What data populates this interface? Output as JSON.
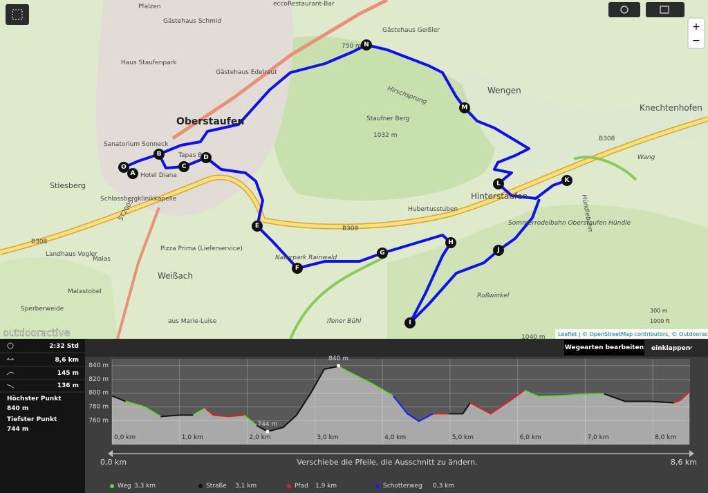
{
  "map": {
    "labels": [
      "Pfalzen",
      "eccoRestaurant-Bar",
      "Gästehaus Schmid",
      "Haus Staufenpark",
      "Gästehaus Edelraut",
      "Oberstaufen",
      "Sanatorium Sonneck",
      "Tapas Bar",
      "Hotel Diana",
      "Stiesberg",
      "Schlossbergklinikkapelle",
      "Landhaus Vogler",
      "Malas",
      "Pizza Prima (Lieferservice)",
      "Weißach",
      "Malastobel",
      "aus Marie-Luise",
      "Sperberweide",
      "Naturpark Rainwald",
      "Ifener Bühl",
      "Roßwinkel",
      "Hinterstaufen",
      "Hubertusstuben",
      "Staufner Berg",
      "1032 m",
      "Hirschsprung",
      "Wengen",
      "Knechtenhofen",
      "Wang",
      "Sommerrodelbahn Oberstaufen Hündle",
      "750 m",
      "Gästehaus Geißler",
      "B308",
      "B308",
      "B308",
      "ST2005",
      "1040 m",
      "Hündlebahn"
    ],
    "waypoints": [
      "A",
      "B",
      "C",
      "D",
      "E",
      "F",
      "G",
      "H",
      "I",
      "J",
      "K",
      "L",
      "M",
      "N",
      "O"
    ],
    "brand": "outdooractive",
    "attribution": "Leaflet | © OpenStreetMap contributors, © Outdooractive",
    "scale_metric": "300 m",
    "scale_imperial": "1000 ft",
    "zoom_in": "+",
    "zoom_out": "−"
  },
  "stats": {
    "duration": "2:32 Std",
    "distance": "8,6 km",
    "ascent": "145 m",
    "descent": "136 m",
    "highest_label": "Höchster Punkt",
    "highest": "840 m",
    "lowest_label": "Tiefster Punkt",
    "lowest": "744 m"
  },
  "toolbar": {
    "edit": "Wegearten bearbeiten",
    "collapse": "einklappen"
  },
  "slider": {
    "start_label": "0,0 km",
    "end_label": "8,6 km",
    "hint": "Verschiebe die Pfeile, die Ausschnitt zu ändern."
  },
  "chart_data": {
    "type": "line",
    "x": [
      0,
      0.2,
      0.48,
      0.72,
      1.0,
      1.2,
      1.38,
      1.5,
      1.72,
      1.95,
      2.14,
      2.3,
      2.53,
      2.73,
      2.94,
      3.14,
      3.35,
      3.52,
      3.86,
      4.16,
      4.37,
      4.54,
      4.75,
      4.98,
      5.19,
      5.3,
      5.6,
      5.9,
      6.1,
      6.31,
      6.62,
      6.93,
      7.28,
      7.59,
      7.95,
      8.31,
      8.41,
      8.54
    ],
    "series": [
      {
        "name": "Weg",
        "distance": "3,3 km",
        "color": "#6ad23a",
        "values": [
          null,
          788,
          780,
          766,
          null,
          768,
          778,
          null,
          null,
          768,
          753,
          null,
          null,
          null,
          null,
          null,
          839,
          830,
          813,
          796,
          null,
          null,
          null,
          null,
          null,
          null,
          null,
          null,
          804,
          795,
          796,
          798,
          799,
          null,
          null,
          null,
          null,
          null
        ]
      },
      {
        "name": "Straße",
        "distance": "3,1 km",
        "color": "#111111",
        "values": [
          796,
          788,
          null,
          766,
          768,
          768,
          null,
          null,
          null,
          null,
          753,
          744,
          750,
          768,
          800,
          835,
          839,
          null,
          null,
          null,
          null,
          null,
          null,
          770,
          770,
          786,
          null,
          null,
          null,
          null,
          null,
          null,
          799,
          788,
          788,
          786,
          null,
          null
        ]
      },
      {
        "name": "Pfad",
        "distance": "1,9 km",
        "color": "#e02020",
        "values": [
          null,
          null,
          null,
          null,
          null,
          null,
          778,
          768,
          766,
          768,
          null,
          null,
          null,
          null,
          null,
          null,
          null,
          null,
          null,
          null,
          null,
          null,
          770,
          770,
          null,
          786,
          770,
          790,
          804,
          null,
          null,
          null,
          null,
          null,
          null,
          786,
          790,
          802
        ]
      },
      {
        "name": "Schotterweg",
        "distance": "0,3 km",
        "color": "#1a1aff",
        "values": [
          null,
          null,
          null,
          null,
          null,
          null,
          null,
          null,
          null,
          null,
          null,
          null,
          null,
          null,
          null,
          null,
          null,
          null,
          null,
          796,
          770,
          759,
          770,
          null,
          null,
          null,
          null,
          null,
          null,
          null,
          null,
          null,
          null,
          null,
          null,
          null,
          null,
          null
        ]
      }
    ],
    "annotations": [
      {
        "x": 3.35,
        "value": 840,
        "label": "840 m"
      },
      {
        "x": 2.3,
        "value": 744,
        "label": "744 m"
      }
    ],
    "xlim": [
      0,
      8.55
    ],
    "ylim": [
      725,
      850
    ],
    "xticks": [
      {
        "value": 0,
        "label": "0,0 km"
      },
      {
        "value": 1,
        "label": "1,0 km"
      },
      {
        "value": 2,
        "label": "2,0 km"
      },
      {
        "value": 3,
        "label": "3,0 km"
      },
      {
        "value": 4,
        "label": "4,0 km"
      },
      {
        "value": 5,
        "label": "5,0 km"
      },
      {
        "value": 6,
        "label": "6,0 km"
      },
      {
        "value": 7,
        "label": "7,0 km"
      },
      {
        "value": 8,
        "label": "8,0 km"
      }
    ],
    "yticks": [
      {
        "value": 760,
        "label": "760 m"
      },
      {
        "value": 780,
        "label": "780 m"
      },
      {
        "value": 800,
        "label": "800 m"
      },
      {
        "value": 820,
        "label": "820 m"
      },
      {
        "value": 840,
        "label": "840 m"
      }
    ],
    "grid": true
  }
}
